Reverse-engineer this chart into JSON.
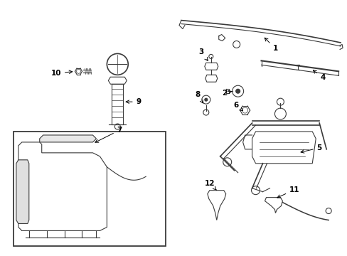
{
  "bg_color": "#ffffff",
  "line_color": "#3a3a3a",
  "fig_width": 4.89,
  "fig_height": 3.6,
  "dpi": 100
}
